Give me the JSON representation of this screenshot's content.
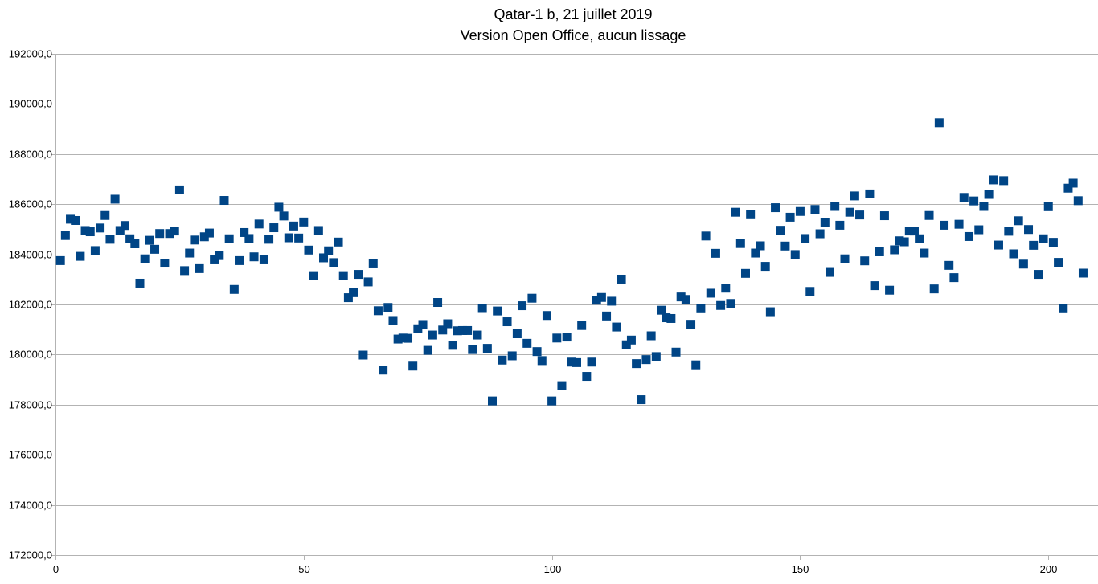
{
  "chart_data": {
    "type": "scatter",
    "title": "Qatar-1 b, 21 juillet 2019",
    "subtitle": "Version Open Office, aucun lissage",
    "xlim": [
      0,
      210
    ],
    "ylim": [
      172000,
      192000
    ],
    "x_ticks": [
      0,
      50,
      100,
      150,
      200
    ],
    "x_tick_labels": [
      "0",
      "50",
      "100",
      "150",
      "200"
    ],
    "y_ticks": [
      172000,
      174000,
      176000,
      178000,
      180000,
      182000,
      184000,
      186000,
      188000,
      190000,
      192000
    ],
    "y_tick_labels": [
      "172000,0",
      "174000,0",
      "176000,0",
      "178000,0",
      "180000,0",
      "182000,0",
      "184000,0",
      "186000,0",
      "188000,0",
      "190000,0",
      "192000,0"
    ],
    "grid": "horizontal",
    "legend": "none",
    "marker": "square",
    "color": "#004586",
    "series": [
      {
        "x": [
          1,
          2,
          3,
          4,
          5,
          6,
          7,
          8,
          9,
          10,
          11,
          12,
          13,
          14,
          15,
          16,
          17,
          18,
          19,
          20,
          21,
          22,
          23,
          24,
          25,
          26,
          27,
          28,
          29,
          30,
          31,
          32,
          33,
          34,
          35,
          36,
          37,
          38,
          39,
          40,
          41,
          42,
          43,
          44,
          45,
          46,
          47,
          48,
          49,
          50,
          51,
          52,
          53,
          54,
          55,
          56,
          57,
          58,
          59,
          60,
          61,
          62,
          63,
          64,
          65,
          66,
          67,
          68,
          69,
          70,
          71,
          72,
          73,
          74,
          75,
          76,
          77,
          78,
          79,
          80,
          81,
          82,
          83,
          84,
          85,
          86,
          87,
          88,
          89,
          90,
          91,
          92,
          93,
          94,
          95,
          96,
          97,
          98,
          99,
          100,
          101,
          102,
          103,
          104,
          105,
          106,
          107,
          108,
          109,
          110,
          111,
          112,
          113,
          114,
          115,
          116,
          117,
          118,
          119,
          120,
          121,
          122,
          123,
          124,
          125,
          126,
          127,
          128,
          129,
          130,
          131,
          132,
          133,
          134,
          135,
          136,
          137,
          138,
          139,
          140,
          141,
          142,
          143,
          144,
          145,
          146,
          147,
          148,
          149,
          150,
          151,
          152,
          153,
          154,
          155,
          156,
          157,
          158,
          159,
          160,
          161,
          162,
          163,
          164,
          165,
          166,
          167,
          168,
          169,
          170,
          171,
          172,
          173,
          174,
          175,
          176,
          177,
          178,
          179,
          180,
          181,
          182,
          183,
          184,
          185,
          186,
          187,
          188,
          189,
          190,
          191,
          192,
          193,
          194,
          195,
          196,
          197,
          198,
          199,
          200,
          201,
          202,
          203,
          204,
          205,
          206,
          207
        ],
        "y": [
          183750,
          184750,
          185400,
          185350,
          183920,
          184950,
          184900,
          184150,
          185050,
          185550,
          184600,
          186200,
          184950,
          185150,
          184620,
          184420,
          182850,
          183820,
          184560,
          184200,
          184830,
          183650,
          184830,
          184930,
          186570,
          183350,
          184050,
          184570,
          183430,
          184700,
          184850,
          183780,
          183950,
          186150,
          184620,
          182600,
          183750,
          184870,
          184630,
          183900,
          185210,
          183780,
          184600,
          185060,
          185880,
          185530,
          184660,
          185130,
          184650,
          185290,
          184170,
          183150,
          184950,
          183860,
          184140,
          183670,
          184490,
          183150,
          182270,
          182470,
          183200,
          179980,
          182900,
          183620,
          181750,
          179380,
          181880,
          181360,
          180620,
          180660,
          180650,
          179540,
          181030,
          181200,
          180170,
          180780,
          182080,
          180980,
          181230,
          180370,
          180950,
          180960,
          180960,
          180200,
          180780,
          181840,
          180250,
          178150,
          181740,
          179780,
          181310,
          179950,
          180830,
          181950,
          180450,
          182250,
          180120,
          179760,
          181560,
          178150,
          180660,
          178760,
          180700,
          179700,
          179680,
          181160,
          179130,
          179700,
          182170,
          182280,
          181540,
          182130,
          181100,
          183010,
          180390,
          180580,
          179640,
          178200,
          179800,
          180750,
          179920,
          181770,
          181470,
          181440,
          180100,
          182300,
          182200,
          181210,
          179590,
          181830,
          184730,
          182450,
          184040,
          181960,
          182650,
          182040,
          185680,
          184430,
          183240,
          185580,
          184050,
          184340,
          183520,
          181710,
          185860,
          184960,
          184330,
          185480,
          183990,
          185710,
          184630,
          182520,
          185790,
          184820,
          185260,
          183280,
          185910,
          185160,
          183820,
          185680,
          186330,
          185570,
          183740,
          186410,
          182750,
          184100,
          185540,
          182570,
          184180,
          184540,
          184500,
          184930,
          184930,
          184620,
          184050,
          185550,
          182620,
          189250,
          185160,
          183560,
          183070,
          185200,
          186270,
          184710,
          186130,
          184980,
          185910,
          186390,
          186970,
          184370,
          186940,
          184920,
          184020,
          185340,
          183610,
          184990,
          184360,
          183200,
          184620,
          185900,
          184480,
          183680,
          181830,
          186640,
          186840,
          186140,
          183250
        ]
      }
    ]
  }
}
